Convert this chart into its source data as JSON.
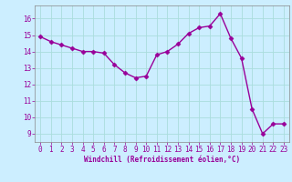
{
  "x": [
    0,
    1,
    2,
    3,
    4,
    5,
    6,
    7,
    8,
    9,
    10,
    11,
    12,
    13,
    14,
    15,
    16,
    17,
    18,
    19,
    20,
    21,
    22,
    23
  ],
  "y": [
    14.9,
    14.6,
    14.4,
    14.2,
    14.0,
    14.0,
    13.9,
    13.2,
    12.7,
    12.4,
    12.5,
    13.8,
    14.0,
    14.45,
    15.1,
    15.45,
    15.55,
    16.3,
    14.8,
    13.6,
    10.5,
    9.0,
    9.6,
    9.6
  ],
  "line_color": "#990099",
  "marker": "D",
  "markersize": 2.5,
  "bg_color": "#cceeff",
  "grid_color": "#aadddd",
  "xlabel": "Windchill (Refroidissement éolien,°C)",
  "xlabel_color": "#990099",
  "tick_color": "#990099",
  "label_fontsize": 5.5,
  "ylim": [
    8.5,
    16.8
  ],
  "xlim": [
    -0.5,
    23.5
  ],
  "yticks": [
    9,
    10,
    11,
    12,
    13,
    14,
    15,
    16
  ],
  "xticks": [
    0,
    1,
    2,
    3,
    4,
    5,
    6,
    7,
    8,
    9,
    10,
    11,
    12,
    13,
    14,
    15,
    16,
    17,
    18,
    19,
    20,
    21,
    22,
    23
  ],
  "spine_color": "#888888",
  "linewidth": 1.0
}
